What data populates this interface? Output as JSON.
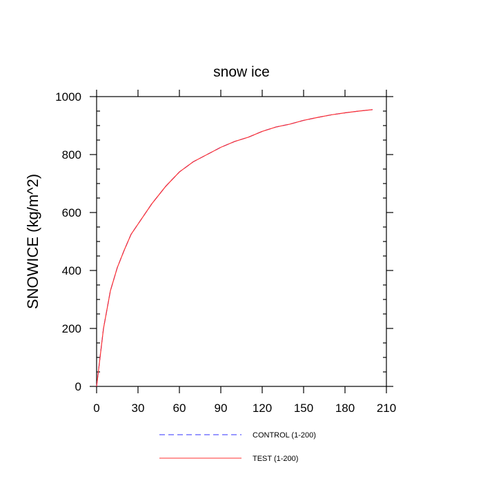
{
  "chart_data": {
    "type": "line",
    "title": "snow ice",
    "xlabel": "",
    "ylabel": "SNOWICE  (kg/m^2)",
    "xlim": [
      0,
      210
    ],
    "ylim": [
      0,
      1000
    ],
    "xticks": [
      0,
      30,
      60,
      90,
      120,
      150,
      180,
      210
    ],
    "yticks": [
      0,
      200,
      400,
      600,
      800,
      1000
    ],
    "grid": false,
    "legend_position": "bottom",
    "series": [
      {
        "name": "CONTROL (1-200)",
        "color": "#3030ff",
        "style": "dashed",
        "x": [
          0,
          5,
          10,
          15,
          20,
          25,
          30,
          40,
          50,
          60,
          70,
          80,
          90,
          100,
          110,
          120,
          130,
          140,
          150,
          160,
          170,
          180,
          190,
          200
        ],
        "y": [
          0,
          200,
          330,
          410,
          470,
          525,
          560,
          630,
          690,
          740,
          775,
          800,
          825,
          845,
          860,
          880,
          895,
          905,
          918,
          928,
          937,
          944,
          950,
          955
        ]
      },
      {
        "name": "TEST (1-200)",
        "color": "#ff3030",
        "style": "solid",
        "x": [
          0,
          5,
          10,
          15,
          20,
          25,
          30,
          40,
          50,
          60,
          70,
          80,
          90,
          100,
          110,
          120,
          130,
          140,
          150,
          160,
          170,
          180,
          190,
          200
        ],
        "y": [
          0,
          200,
          330,
          410,
          470,
          525,
          560,
          630,
          690,
          740,
          775,
          800,
          825,
          845,
          860,
          880,
          895,
          905,
          918,
          928,
          937,
          944,
          950,
          955
        ]
      }
    ]
  }
}
